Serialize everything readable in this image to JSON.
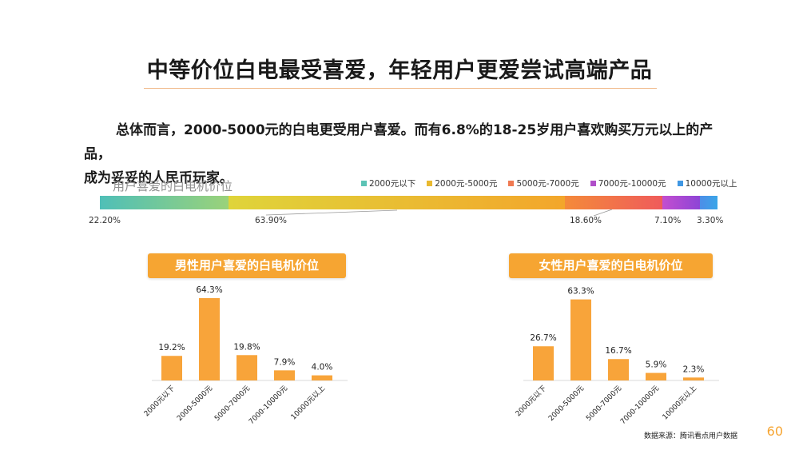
{
  "page": {
    "title": "中等价位白电最受喜爱，年轻用户更爱尝试高端产品",
    "summary_line1": "总体而言，2000-5000元的白电更受用户喜爱。而有6.8%的18-25岁用户喜欢购买万元以上的产品，",
    "summary_line2": "成为妥妥的人民币玩家。",
    "page_number": "60",
    "source": "数据来源：腾讯看点用户数据"
  },
  "colors": {
    "accent": "#f6a532",
    "bar": "#f8a43a",
    "title_rule": "#f0b98a"
  },
  "chart_data": [
    {
      "type": "bar",
      "orientation": "horizontal-stacked",
      "title": "用户喜爱的白电机价位",
      "legend_placement": "top-right",
      "categories": [
        "2000元以下",
        "2000元-5000元",
        "5000元-7000元",
        "7000元-10000元",
        "10000元以上"
      ],
      "values": [
        22.2,
        63.9,
        18.6,
        7.1,
        3.3
      ],
      "labels": [
        "22.20%",
        "63.90%",
        "18.60%",
        "7.10%",
        "3.30%"
      ],
      "colors": [
        "#5cc3b5",
        "#e9b92f",
        "#f07a52",
        "#b04fc9",
        "#3f97e3"
      ]
    },
    {
      "type": "bar",
      "title": "男性用户喜爱的白电机价位",
      "categories": [
        "2000元以下",
        "2000-5000元",
        "5000-7000元",
        "7000-10000元",
        "10000元以上"
      ],
      "values": [
        19.2,
        64.3,
        19.8,
        7.9,
        4.0
      ],
      "labels": [
        "19.2%",
        "64.3%",
        "19.8%",
        "7.9%",
        "4.0%"
      ],
      "ylim": [
        0,
        70
      ],
      "grid": false
    },
    {
      "type": "bar",
      "title": "女性用户喜爱的白电机价位",
      "categories": [
        "2000元以下",
        "2000-5000元",
        "5000-7000元",
        "7000-10000元",
        "10000元以上"
      ],
      "values": [
        26.7,
        63.3,
        16.7,
        5.9,
        2.3
      ],
      "labels": [
        "26.7%",
        "63.3%",
        "16.7%",
        "5.9%",
        "2.3%"
      ],
      "ylim": [
        0,
        70
      ],
      "grid": false
    }
  ]
}
